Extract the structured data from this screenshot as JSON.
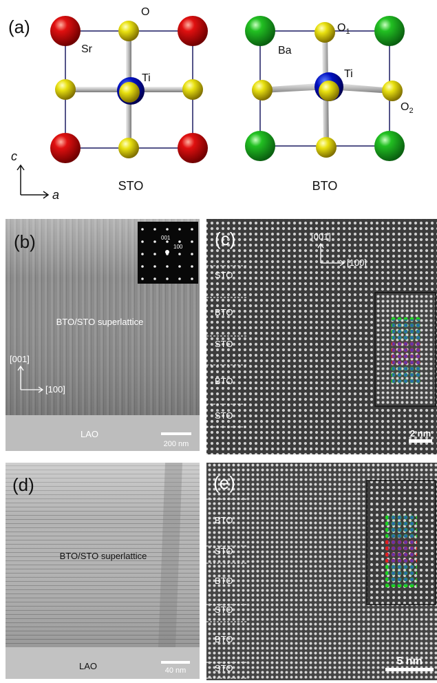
{
  "panel_a": {
    "label": "(a)",
    "sto": {
      "name": "STO",
      "a_site": "Sr",
      "oxygen": "O",
      "b_site": "Ti"
    },
    "bto": {
      "name": "BTO",
      "a_site": "Ba",
      "b_site": "Ti",
      "oxygen_1": {
        "base": "O",
        "sub": "1"
      },
      "oxygen_2": {
        "base": "O",
        "sub": "2"
      }
    },
    "axes": {
      "vertical": "c",
      "horizontal": "a"
    }
  },
  "panel_b": {
    "label": "(b)",
    "diffraction": [
      "001",
      "100"
    ],
    "film": "BTO/STO superlattice",
    "directions": [
      "[001]",
      "[100]"
    ],
    "substrate": "LAO",
    "scale_bar": "200 nm"
  },
  "panel_c": {
    "label": "(c)",
    "directions": [
      "[001]",
      "[100]"
    ],
    "layers": [
      "STO",
      "BTO",
      "STO",
      "BTO",
      "STO"
    ],
    "scale_bar": "2 nm"
  },
  "panel_d": {
    "label": "(d)",
    "film": "BTO/STO superlattice",
    "substrate": "LAO",
    "scale_bar": "40 nm"
  },
  "panel_e": {
    "label": "(e)",
    "layers": [
      "BTO",
      "STO",
      "BTO",
      "STO",
      "BTO",
      "STO"
    ],
    "scale_bar": "5 nm"
  }
}
